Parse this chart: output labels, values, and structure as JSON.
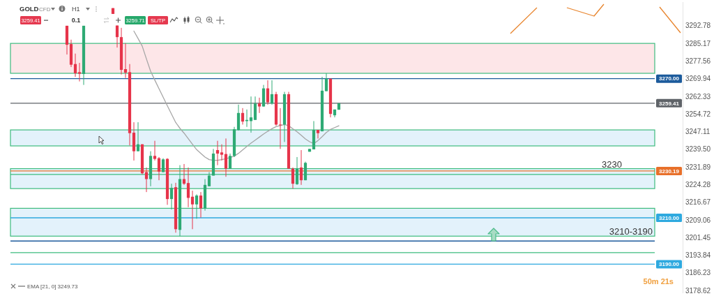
{
  "chart_data": {
    "type": "candlestick",
    "title": "GOLD",
    "subtitle": "CFD",
    "categories": [
      null,
      null,
      null,
      null,
      null,
      null,
      null,
      null,
      null,
      null,
      null,
      null,
      null,
      null,
      null,
      null,
      null,
      null,
      null,
      null,
      null,
      null,
      null,
      null,
      null,
      null,
      null,
      null,
      null,
      null,
      null,
      null,
      null,
      null,
      null,
      null,
      null,
      null,
      null,
      null,
      null,
      null,
      null,
      null,
      null,
      null,
      null,
      null,
      null,
      null,
      null,
      null,
      null,
      null,
      null,
      null,
      null,
      null,
      null,
      null,
      null,
      null,
      null,
      null,
      null,
      null,
      null,
      null,
      null,
      null,
      null,
      null,
      null,
      null,
      null,
      null,
      null,
      null,
      null,
      null,
      null,
      null,
      null,
      null,
      null,
      null,
      null,
      null,
      null,
      null,
      null,
      null,
      null,
      null,
      null,
      null,
      null,
      null,
      null,
      null,
      null,
      null,
      null,
      null,
      null,
      null,
      null,
      null,
      null,
      null,
      null,
      null,
      null,
      null,
      null,
      null,
      null,
      null,
      null,
      null,
      null,
      null,
      null,
      null,
      null,
      null,
      null,
      null,
      null,
      null,
      null,
      null,
      null,
      null,
      null,
      null,
      null,
      null,
      null,
      null,
      null,
      null,
      null,
      null,
      null,
      null,
      null,
      null,
      null,
      null,
      null,
      null,
      null,
      null
    ],
    "ohlc": [
      null,
      null,
      null,
      null,
      null,
      null,
      null,
      null,
      null,
      null,
      null,
      null,
      null,
      [
        3292.8,
        3292.8,
        3280.4,
        3284.6
      ],
      [
        3284.9,
        3286.8,
        3275.0,
        3276.0
      ],
      [
        3276.3,
        3280.8,
        3270.8,
        3272.3
      ],
      [
        3272.8,
        3276.8,
        3268.8,
        3272.1
      ],
      [
        3272.0,
        3292.8,
        3267.3,
        3292.8
      ],
      null,
      null,
      null,
      null,
      null,
      null,
      [
        3300.4,
        3300.4,
        3297.9,
        3297.9
      ],
      [
        3292.9,
        3292.9,
        3283.4,
        3287.9
      ],
      [
        3287.9,
        3291.9,
        3271.8,
        3273.8
      ],
      [
        3274.1,
        3285.3,
        3270.3,
        3272.6
      ],
      [
        3272.8,
        3276.3,
        3241.2,
        3246.5
      ],
      [
        3246.7,
        3251.2,
        3234.7,
        3238.7
      ],
      [
        3238.7,
        3251.2,
        3238.7,
        3241.7
      ],
      [
        3241.7,
        3241.7,
        3228.7,
        3229.2
      ],
      [
        3229.7,
        3231.7,
        3221.1,
        3226.7
      ],
      [
        3226.7,
        3238.7,
        3223.6,
        3236.7
      ],
      [
        3236.7,
        3243.2,
        3234.7,
        3235.4
      ],
      [
        3235.7,
        3236.2,
        3226.2,
        3229.9
      ],
      [
        3229.7,
        3235.7,
        3229.7,
        3235.2
      ],
      [
        3235.4,
        3235.7,
        3215.6,
        3218.1
      ],
      [
        3218.1,
        3224.7,
        3213.6,
        3222.9
      ],
      [
        3223.2,
        3225.1,
        3203.6,
        3205.1
      ],
      [
        3204.8,
        3232.7,
        3202.1,
        3226.7
      ],
      [
        3226.7,
        3233.2,
        3224.2,
        3224.7
      ],
      [
        3225.0,
        3231.7,
        3214.6,
        3218.6
      ],
      [
        3219.1,
        3221.7,
        3205.1,
        3215.8
      ],
      [
        3215.8,
        3220.1,
        3209.6,
        3219.6
      ],
      [
        3219.6,
        3221.1,
        3210.1,
        3214.1
      ],
      [
        3214.1,
        3226.7,
        3213.1,
        3224.2
      ],
      [
        3223.6,
        3229.7,
        3223.6,
        3228.2
      ],
      [
        3228.2,
        3239.7,
        3228.2,
        3237.7
      ],
      [
        3239.2,
        3243.2,
        3232.7,
        3237.7
      ],
      [
        3238.2,
        3241.7,
        3234.7,
        3237.2
      ],
      [
        3237.5,
        3244.2,
        3227.7,
        3231.2
      ],
      [
        3231.2,
        3237.7,
        3231.2,
        3236.7
      ],
      [
        3236.7,
        3249.2,
        3236.2,
        3248.2
      ],
      [
        3247.9,
        3258.8,
        3247.6,
        3255.2
      ],
      [
        3255.2,
        3257.3,
        3250.2,
        3251.5
      ],
      [
        3251.7,
        3256.7,
        3249.2,
        3252.2
      ],
      [
        3251.7,
        3262.3,
        3246.7,
        3253.3
      ],
      [
        3252.2,
        3262.3,
        3252.2,
        3259.3
      ],
      [
        3259.3,
        3261.8,
        3255.2,
        3258.0
      ],
      [
        3258.0,
        3267.3,
        3257.9,
        3265.8
      ],
      [
        3265.8,
        3269.3,
        3258.8,
        3259.8
      ],
      [
        3259.3,
        3269.3,
        3258.8,
        3263.3
      ],
      [
        3263.3,
        3264.3,
        3249.7,
        3250.2
      ],
      [
        3250.2,
        3257.3,
        3239.7,
        3250.2
      ],
      [
        3250.2,
        3264.3,
        3242.7,
        3263.3
      ],
      [
        3263.3,
        3264.3,
        3231.2,
        3231.2
      ],
      [
        3231.2,
        3231.7,
        3222.6,
        3224.7
      ],
      [
        3224.5,
        3236.2,
        3224.2,
        3231.2
      ],
      [
        3231.7,
        3239.2,
        3224.2,
        3226.2
      ],
      [
        3226.2,
        3234.2,
        3226.2,
        3233.7
      ],
      [
        3238.5,
        3239.7,
        3238.5,
        3239.7
      ],
      [
        3239.5,
        3251.7,
        3239.5,
        3247.9
      ],
      [
        3247.9,
        3247.9,
        3244.2,
        3246.5
      ],
      [
        3247.3,
        3270.8,
        3247.3,
        3264.8
      ],
      [
        3264.6,
        3272.3,
        3264.6,
        3270.0
      ],
      [
        3270.0,
        3270.0,
        3253.3,
        3254.8
      ],
      [
        3254.2,
        3256.7,
        3253.3,
        3256.7
      ],
      [
        3256.6,
        3259.4,
        3256.6,
        3259.4
      ],
      null,
      null,
      null,
      null,
      null,
      null,
      null,
      null,
      null,
      null,
      null,
      null,
      null,
      null,
      null,
      null,
      null,
      null,
      null,
      null,
      null,
      null,
      null,
      null,
      null,
      null,
      null,
      null,
      null,
      null,
      null,
      null,
      null,
      null,
      null,
      null,
      null,
      null,
      null,
      null,
      null,
      null,
      null,
      null,
      null,
      null,
      null,
      null,
      null,
      null,
      null,
      null,
      null,
      null,
      null,
      null,
      null,
      null,
      null,
      null,
      null,
      null,
      null,
      null,
      null,
      null,
      null,
      null,
      null,
      null,
      null,
      null,
      null,
      null,
      null
    ],
    "colors": [
      null,
      null,
      null,
      null,
      null,
      null,
      null,
      null,
      null,
      null,
      null,
      null,
      null,
      "#e6344a",
      "#e6344a",
      "#e6344a",
      "#e6344a",
      "#2eaa74",
      null,
      null,
      null,
      null,
      null,
      null,
      "#e6344a",
      "#e6344a",
      "#e6344a",
      "#e6344a",
      "#e6344a",
      "#e6344a",
      "#2eaa74",
      "#e6344a",
      "#e6344a",
      "#2eaa74",
      "#e6344a",
      "#e6344a",
      "#2eaa74",
      "#e6344a",
      "#2eaa74",
      "#e6344a",
      "#2eaa74",
      "#e6344a",
      "#e6344a",
      "#e6344a",
      "#2eaa74",
      "#e6344a",
      "#2eaa74",
      "#2eaa74",
      "#2eaa74",
      "#e6344a",
      "#e6344a",
      "#e6344a",
      "#2eaa74",
      "#2eaa74",
      "#2eaa74",
      "#e6344a",
      "#2eaa74",
      "#2eaa74",
      "#2eaa74",
      "#e6344a",
      "#2eaa74",
      "#e6344a",
      "#2eaa74",
      "#e6344a",
      "#e6344a",
      "#2eaa74",
      "#e6344a",
      "#e6344a",
      "#2eaa74",
      "#e6344a",
      "#2eaa74",
      "#2eaa74",
      "#2eaa74",
      "#e6344a",
      "#2eaa74",
      "#2eaa74",
      "#e6344a",
      "#2eaa74",
      "#2eaa74",
      null,
      null,
      null,
      null,
      null,
      null,
      null,
      null,
      null,
      null,
      null,
      null,
      null,
      null,
      null,
      null,
      null,
      null,
      null,
      null,
      null,
      null,
      null,
      null,
      null,
      null,
      null,
      null,
      null,
      null,
      null,
      null,
      null,
      null,
      null,
      null,
      null,
      null,
      null,
      null,
      null,
      null,
      null,
      null,
      null,
      null,
      null,
      null,
      null,
      null,
      null,
      null,
      null,
      null,
      null,
      null,
      null,
      null,
      null,
      null,
      null,
      null,
      null,
      null,
      null,
      null,
      null,
      null,
      null,
      null,
      null,
      null,
      null,
      null,
      null
    ],
    "series": [
      {
        "type": "line",
        "name": "EMA [21, 0] 3249.73",
        "color": "#a6a6a6",
        "values": [
          null,
          null,
          null,
          null,
          null,
          null,
          null,
          null,
          null,
          null,
          null,
          null,
          null,
          null,
          null,
          null,
          null,
          null,
          null,
          null,
          null,
          null,
          null,
          null,
          null,
          null,
          null,
          null,
          null,
          3290.5,
          3287.3,
          3284.0,
          3278.5,
          3273.2,
          3269.4,
          3265.7,
          3262.0,
          3258.3,
          3254.7,
          3251.1,
          3248.6,
          3246.5,
          3244.1,
          3241.7,
          3239.4,
          3237.8,
          3236.2,
          3235.1,
          3234.8,
          3234.8,
          3235.1,
          3235.5,
          3236.0,
          3236.6,
          3237.8,
          3239.3,
          3240.8,
          3242.2,
          3243.5,
          3244.8,
          3246.1,
          3247.3,
          3248.4,
          3249.3,
          3249.8,
          3250.2,
          3249.7,
          3248.4,
          3247.1,
          3245.6,
          3244.0,
          3242.8,
          3242.0,
          3243.3,
          3245.0,
          3246.8,
          3248.1,
          3248.9,
          3249.7,
          null,
          null,
          null,
          null,
          null,
          null,
          null,
          null,
          null,
          null,
          null,
          null,
          null,
          null,
          null,
          null,
          null,
          null,
          null,
          null,
          null,
          null,
          null,
          null,
          null,
          null,
          null,
          null,
          null,
          null,
          null,
          null,
          null,
          null,
          null,
          null,
          null,
          null,
          null,
          null,
          null,
          null,
          null,
          null,
          null,
          null,
          null,
          null,
          null,
          null,
          null,
          null,
          null,
          null,
          null,
          null,
          null,
          null,
          null,
          null,
          null,
          null,
          null,
          null,
          null,
          null,
          null,
          null,
          null,
          null,
          null,
          null,
          null,
          null,
          null
        ]
      }
    ],
    "ylim": [
      3177.5,
      3303
    ],
    "yticks": [
      3292.78,
      3285.17,
      3277.56,
      3269.94,
      3262.33,
      3254.72,
      3247.11,
      {
        "value": 3239.5,
        "label": "3239.50"
      },
      3231.89,
      3224.28,
      3216.67,
      3209.06,
      3201.45,
      3193.84,
      3186.23,
      3178.62
    ],
    "tick_labels": "y",
    "legend": "bottom left",
    "bands": [
      {
        "axis": "y",
        "from": 3272.3,
        "to": 3285.2,
        "color": "#fde6e8"
      },
      {
        "axis": "y",
        "from": 3241.0,
        "to": 3247.9,
        "color": "#e3f2fb"
      },
      {
        "axis": "y",
        "from": 3222.6,
        "to": 3231.2,
        "color": "#e3f2fb"
      },
      {
        "axis": "y",
        "from": 3202.1,
        "to": 3214.1,
        "color": "#e3f2fb"
      }
    ],
    "ref_lines": [
      {
        "axis": "y",
        "value": 3270,
        "label": "3270.00",
        "color": "#1c5b9c"
      },
      {
        "axis": "y",
        "value": 3259.41,
        "label": "3259.41",
        "color": "#5f6368"
      },
      {
        "axis": "y",
        "value": 3230.19,
        "label": "3230.19",
        "color": "#e8702a"
      },
      {
        "axis": "y",
        "value": 3228.7,
        "color": "#3dbb7e"
      },
      {
        "axis": "y",
        "value": 3210,
        "label": "3210.00",
        "color": "#2ea9df"
      },
      {
        "axis": "y",
        "value": 3200.0,
        "color": "#1c5b9c"
      },
      {
        "axis": "y",
        "value": 3195.0,
        "color": "#3dbb7e"
      },
      {
        "axis": "y",
        "value": 3190,
        "label": "3190.00",
        "color": "#2ea9df"
      }
    ],
    "annotations": [
      {
        "text": "3230",
        "y": 3230.19
      },
      {
        "text": "3210-3190",
        "y": 3200.0
      },
      "H1",
      "3259.41",
      "0.1",
      "3259.71",
      "SL/TP",
      "50m 21s"
    ]
  }
}
